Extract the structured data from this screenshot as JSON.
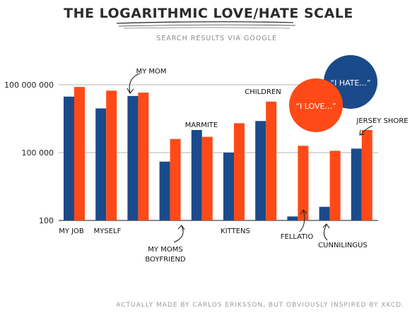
{
  "title": "THE LOGARITHMIC LOVE/HATE SCALE",
  "subtitle": "SEARCH RESULTS VIA GOOGLE",
  "credit": "ACTUALLY MADE BY CARLOS ERIKSSON, BUT OBVIOUSLY INSPIRED BY XKCD.",
  "legend": {
    "hate": "“I HATE...”",
    "love": "“I LOVE...”"
  },
  "colors": {
    "hate": "#1b4a8a",
    "love": "#ff4a17",
    "grid": "#9a9a9a",
    "axis": "#444444"
  },
  "chart_data": {
    "type": "bar",
    "categories": [
      "MY JOB",
      "MYSELF",
      "MY MOM",
      "MY MOMS BOYFRIEND",
      "MARMITE",
      "KITTENS",
      "CHILDREN",
      "FELLATIO",
      "CUNNILINGUS",
      "JERSEY SHORE"
    ],
    "series": [
      {
        "name": "“I HATE...”",
        "values": [
          30000000,
          9000000,
          32000000,
          40000,
          1000000,
          100000,
          2500000,
          150,
          400,
          150000
        ]
      },
      {
        "name": "“I LOVE...”",
        "values": [
          80000000,
          55000000,
          45000000,
          400000,
          500000,
          2000000,
          18000000,
          200000,
          120000,
          1000000
        ]
      }
    ],
    "yscale": "log",
    "ylim": [
      100,
      200000000
    ],
    "yticks": [
      100,
      100000,
      100000000
    ],
    "ytick_labels": [
      "100",
      "100 000",
      "100 000 000"
    ],
    "grid": true
  }
}
